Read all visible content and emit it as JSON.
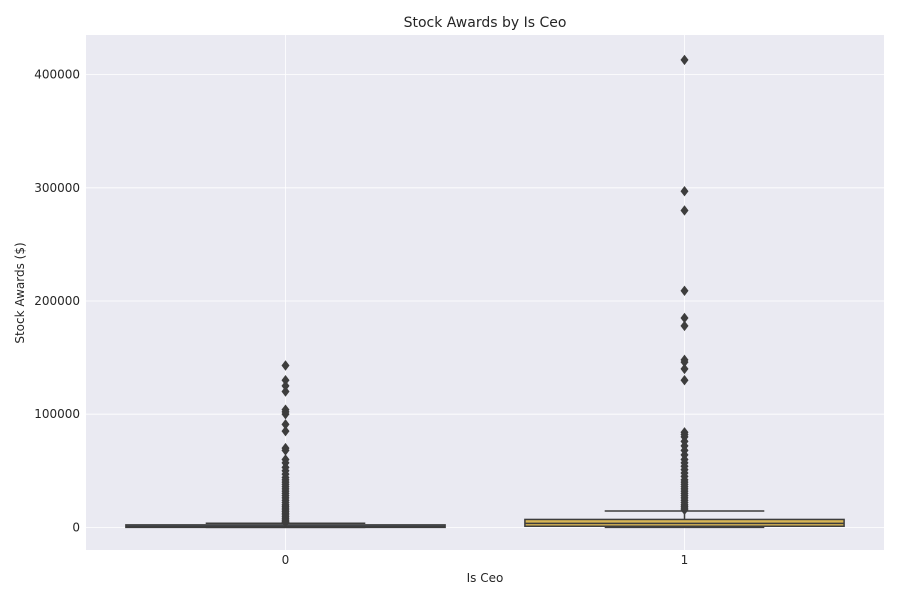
{
  "chart_data": {
    "type": "box",
    "title": "Stock Awards by Is Ceo",
    "xlabel": "Is Ceo",
    "ylabel": "Stock Awards ($)",
    "categories": [
      "0",
      "1"
    ],
    "ylim": [
      -20000,
      435000
    ],
    "yticks": [
      0,
      100000,
      200000,
      300000,
      400000
    ],
    "yticks_labels": [
      "0",
      "100000",
      "200000",
      "300000",
      "400000"
    ],
    "grid": true,
    "background_color": "#eaeaf2",
    "box_colors": [
      "#6d8fc5",
      "#d8b655"
    ],
    "boxes": [
      {
        "category": "0",
        "q1": 0,
        "median": 900,
        "q3": 2200,
        "whisker_low": 0,
        "whisker_high": 3600,
        "outliers": [
          143000,
          130000,
          125000,
          120000,
          104000,
          102000,
          100000,
          91000,
          85000,
          70000,
          68000,
          60000,
          57000,
          53000,
          50000,
          47000,
          44000,
          42000,
          40000,
          38000,
          36000,
          34000,
          32000,
          30000,
          28000,
          26000,
          24000,
          22000,
          20000,
          18500,
          17000,
          15500,
          14000,
          12500,
          11000,
          9500,
          8000,
          6500,
          5500,
          4500
        ]
      },
      {
        "category": "1",
        "q1": 1000,
        "median": 3500,
        "q3": 7000,
        "whisker_low": 0,
        "whisker_high": 14500,
        "outliers": [
          413000,
          297000,
          280000,
          209000,
          185000,
          178000,
          148000,
          146000,
          140000,
          130000,
          84000,
          82000,
          80000,
          76000,
          72000,
          68000,
          64000,
          60000,
          57000,
          54000,
          51000,
          48000,
          45000,
          42000,
          40000,
          38000,
          36000,
          34000,
          32000,
          30000,
          28000,
          26000,
          24000,
          22000,
          20000,
          18500,
          17000,
          15500
        ]
      }
    ]
  }
}
